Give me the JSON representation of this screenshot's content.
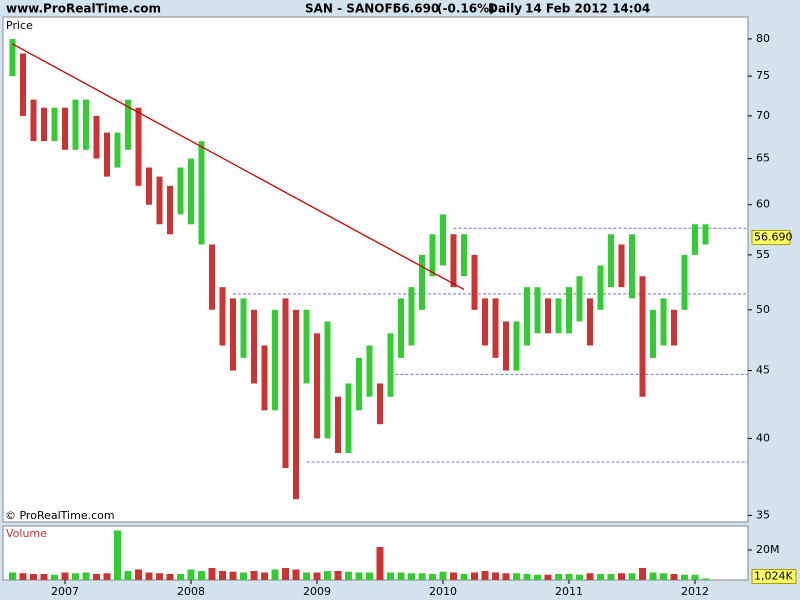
{
  "header": {
    "site": "www.ProRealTime.com",
    "symbol": "SAN - SANOFI",
    "change": "(-0.16%)",
    "period": "Daily",
    "timestamp": "14 Feb 2012 14:04"
  },
  "last_price": {
    "value": 56.69,
    "label": "56.690"
  },
  "chart_data": [
    {
      "type": "range-bar",
      "title": "Price",
      "copyright": "© ProRealTime.com",
      "categories": [
        null,
        null,
        null,
        null,
        null,
        "2007",
        null,
        null,
        null,
        null,
        null,
        null,
        null,
        null,
        null,
        null,
        null,
        "2008",
        null,
        null,
        null,
        null,
        null,
        null,
        null,
        null,
        null,
        null,
        null,
        "2009",
        null,
        null,
        null,
        null,
        null,
        null,
        null,
        null,
        null,
        null,
        null,
        "2010",
        null,
        null,
        null,
        null,
        null,
        null,
        null,
        null,
        null,
        null,
        null,
        "2011",
        null,
        null,
        null,
        null,
        null,
        null,
        null,
        null,
        null,
        null,
        null,
        "2012",
        null
      ],
      "series": [
        {
          "name": "High",
          "values": [
            80,
            78,
            72,
            71,
            71,
            71,
            72,
            72,
            70,
            68,
            68,
            72,
            71,
            64,
            63,
            62,
            64,
            65,
            67,
            56,
            52,
            51,
            51,
            50,
            47,
            50,
            51,
            50,
            50,
            48,
            49,
            43,
            44,
            46,
            47,
            44,
            48,
            51,
            52,
            55,
            57,
            59,
            57,
            57,
            55,
            51,
            51,
            49,
            49,
            52,
            52,
            51,
            51,
            52,
            53,
            51,
            54,
            57,
            56,
            57,
            53,
            50,
            51,
            50,
            55,
            58,
            58
          ]
        },
        {
          "name": "Low",
          "values": [
            75,
            70,
            67,
            67,
            67,
            66,
            66,
            66,
            65,
            63,
            64,
            66,
            62,
            60,
            58,
            57,
            59,
            58,
            56,
            50,
            47,
            45,
            46,
            44,
            42,
            42,
            38,
            36,
            44,
            40,
            40,
            39,
            39,
            42,
            43,
            41,
            43,
            46,
            47,
            50,
            53,
            54,
            52,
            53,
            50,
            47,
            46,
            45,
            45,
            47,
            48,
            48,
            48,
            48,
            49,
            47,
            50,
            52,
            52,
            51,
            43,
            46,
            47,
            47,
            50,
            55,
            56
          ]
        }
      ],
      "up_color": "#33cc33",
      "down_color": "#cc3333",
      "ylim": [
        34.6,
        83.1
      ],
      "yticks": [
        35,
        40,
        45,
        50,
        55,
        60,
        65,
        70,
        75,
        80
      ],
      "log_scale": true,
      "trendline": {
        "from": 0,
        "to": 43,
        "values": [
          79.3,
          51.8
        ],
        "color": "#cc0000"
      },
      "levels": [
        {
          "value": 57.6,
          "from": 42
        },
        {
          "value": 51.4,
          "from": 21
        },
        {
          "value": 44.7,
          "from": 36
        },
        {
          "value": 38.4,
          "from": 28
        }
      ],
      "level_color": "#6677cc"
    },
    {
      "type": "volume",
      "title": "Volume",
      "values": [
        5000000,
        4500000,
        4000000,
        4000000,
        3500000,
        5000000,
        4500000,
        5000000,
        4000000,
        4500000,
        33000000,
        6000000,
        7000000,
        5000000,
        4500000,
        4000000,
        4000000,
        7000000,
        6000000,
        8000000,
        6000000,
        5500000,
        5000000,
        6000000,
        5000000,
        7000000,
        8000000,
        7000000,
        5000000,
        5000000,
        6000000,
        6000000,
        5500000,
        5000000,
        5000000,
        22000000,
        5000000,
        5000000,
        4500000,
        4500000,
        4000000,
        5500000,
        5000000,
        4000000,
        5000000,
        6000000,
        5000000,
        4500000,
        4500000,
        4000000,
        3500000,
        3500000,
        4000000,
        4000000,
        3500000,
        4500000,
        4000000,
        4000000,
        4500000,
        4500000,
        8000000,
        5000000,
        4500000,
        4000000,
        3500000,
        3500000,
        1024000
      ],
      "value_labels": [
        null,
        null,
        null,
        null,
        null,
        null,
        null,
        null,
        null,
        null,
        null,
        null,
        null,
        null,
        null,
        null,
        null,
        null,
        null,
        null,
        null,
        null,
        null,
        null,
        null,
        null,
        null,
        null,
        null,
        null,
        null,
        null,
        null,
        null,
        null,
        null,
        null,
        null,
        null,
        null,
        null,
        null,
        null,
        null,
        null,
        null,
        null,
        null,
        null,
        null,
        null,
        null,
        null,
        null,
        null,
        null,
        null,
        null,
        null,
        null,
        null,
        null,
        null,
        null,
        null,
        null,
        "1,024K"
      ],
      "ylim": [
        0,
        36000000
      ],
      "yticks": [
        {
          "value": 20000000,
          "label": "20M"
        }
      ]
    }
  ]
}
